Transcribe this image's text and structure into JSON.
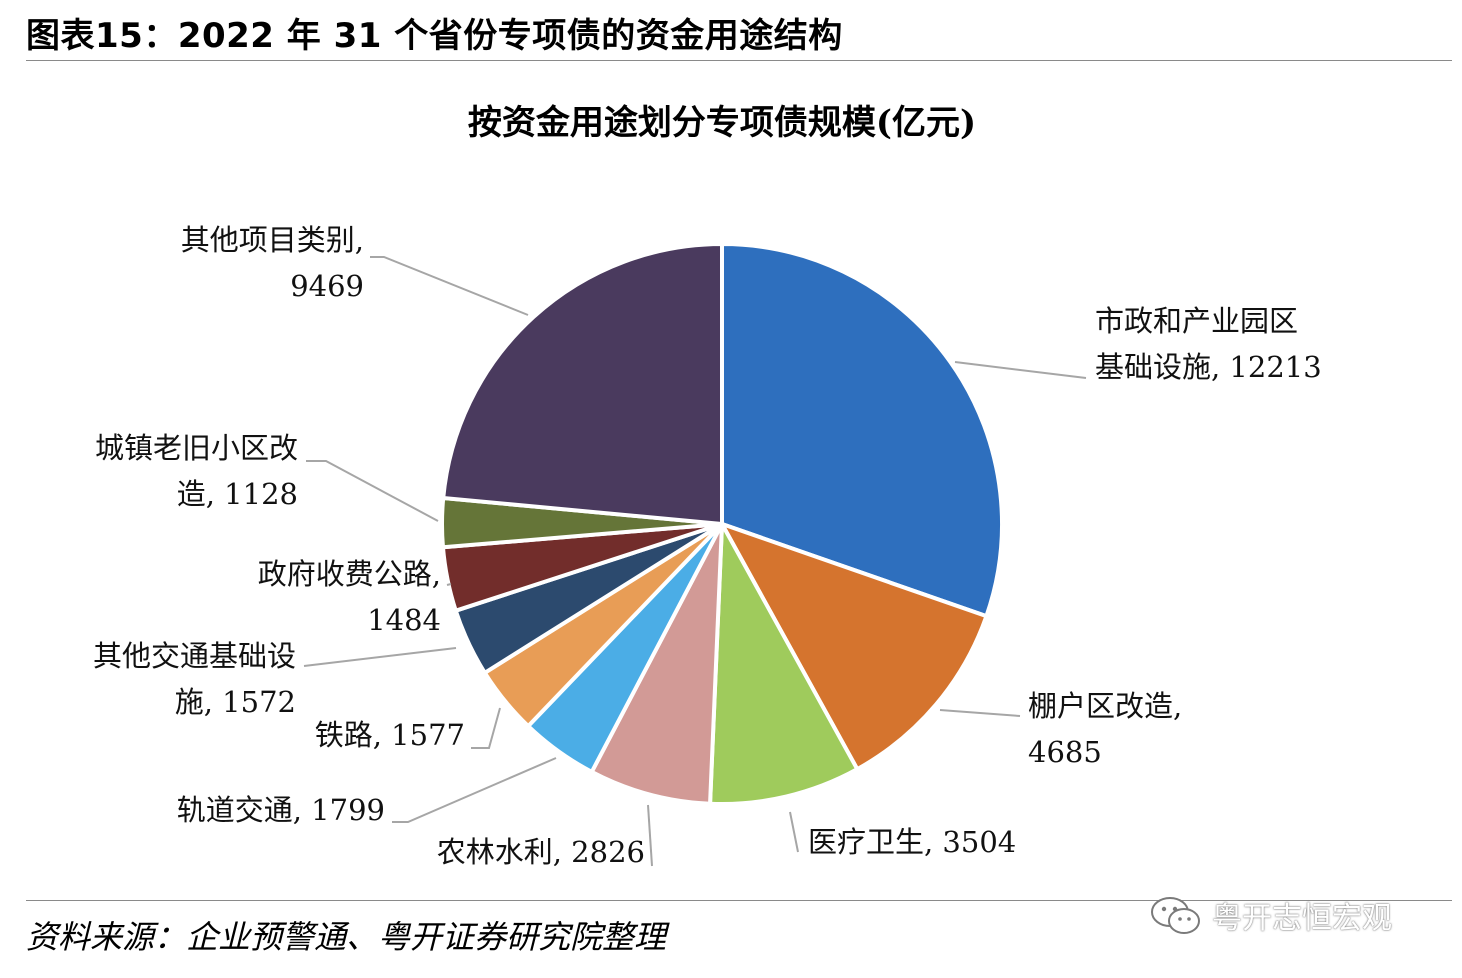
{
  "figure_header": "图表15：2022 年 31 个省份专项债的资金用途结构",
  "source_note": "资料来源：企业预警通、粤开证券研究院整理",
  "watermark_text": "粤开志恒宏观",
  "chart_data": {
    "type": "pie",
    "title": "按资金用途划分专项债规模(亿元)",
    "unit": "亿元",
    "slices": [
      {
        "label": "市政和产业园区基础设施",
        "value": 12213,
        "color": "#2E6FBE",
        "label_lines": [
          "市政和产业园区",
          "基础设施, 12213"
        ]
      },
      {
        "label": "棚户区改造",
        "value": 4685,
        "color": "#D5742E",
        "label_lines": [
          "棚户区改造,",
          "4685"
        ]
      },
      {
        "label": "医疗卫生",
        "value": 3504,
        "color": "#9FCB5C",
        "label_lines": [
          "医疗卫生, 3504"
        ]
      },
      {
        "label": "农林水利",
        "value": 2826,
        "color": "#D29A96",
        "label_lines": [
          "农林水利, 2826"
        ]
      },
      {
        "label": "轨道交通",
        "value": 1799,
        "color": "#4BADE6",
        "label_lines": [
          "轨道交通, 1799"
        ]
      },
      {
        "label": "铁路",
        "value": 1577,
        "color": "#E89D56",
        "label_lines": [
          "铁路, 1577"
        ]
      },
      {
        "label": "其他交通基础设施",
        "value": 1572,
        "color": "#2C4A6E",
        "label_lines": [
          "其他交通基础设",
          "施, 1572"
        ]
      },
      {
        "label": "政府收费公路",
        "value": 1484,
        "color": "#722D2B",
        "label_lines": [
          "政府收费公路,",
          "1484"
        ]
      },
      {
        "label": "城镇老旧小区改造",
        "value": 1128,
        "color": "#657538",
        "label_lines": [
          "城镇老旧小区改",
          "造, 1128"
        ]
      },
      {
        "label": "其他项目类别",
        "value": 9469,
        "color": "#4A3A5E",
        "label_lines": [
          "其他项目类别,",
          "9469"
        ]
      }
    ],
    "start_angle": "12 o'clock",
    "direction": "clockwise",
    "legend": "none"
  }
}
